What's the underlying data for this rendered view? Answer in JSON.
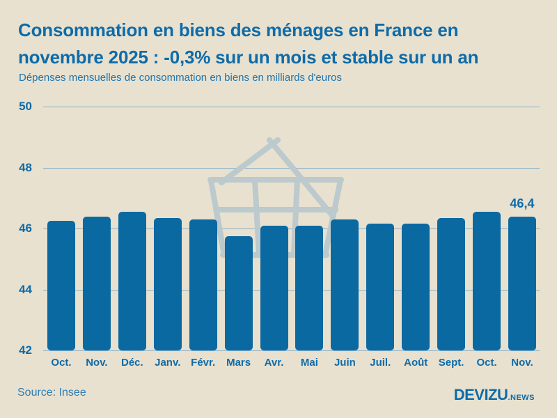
{
  "header": {
    "title_line1": "Consommation en biens des ménages en France en",
    "title_line2": "novembre 2025 : -0,3% sur un mois et stable sur un an",
    "subtitle": "Dépenses mensuelles de consommation en biens en milliards d'euros"
  },
  "footer": {
    "source": "Source: Insee",
    "brand": "DEVIZU",
    "brand_suffix": ".NEWS"
  },
  "colors": {
    "background": "#e8e1cf",
    "bar": "#0b69a2",
    "accent_text": "#0e6ba9",
    "gridline": "#8ab0ca",
    "source_text": "#2f7cb2",
    "watermark": "#bcc9cd"
  },
  "chart_data": {
    "type": "bar",
    "title": "Consommation en biens des ménages en France en novembre 2025 : -0,3% sur un mois et stable sur un an",
    "subtitle": "Dépenses mensuelles de consommation en biens en milliards d'euros",
    "unit": "milliards d'euros",
    "categories": [
      "Oct.",
      "Nov.",
      "Déc.",
      "Janv.",
      "Févr.",
      "Mars",
      "Avr.",
      "Mai",
      "Juin",
      "Juil.",
      "Août",
      "Sept.",
      "Oct.",
      "Nov."
    ],
    "values": [
      46.25,
      46.4,
      46.55,
      46.35,
      46.3,
      45.75,
      46.1,
      46.1,
      46.3,
      46.15,
      46.15,
      46.35,
      46.55,
      46.4
    ],
    "ylim": [
      42,
      50
    ],
    "yticks": [
      "50",
      "48",
      "46",
      "44",
      "42"
    ],
    "grid": true,
    "legend": false,
    "annotation": {
      "label": "46,4",
      "category_index": 13
    },
    "source": "Insee"
  }
}
